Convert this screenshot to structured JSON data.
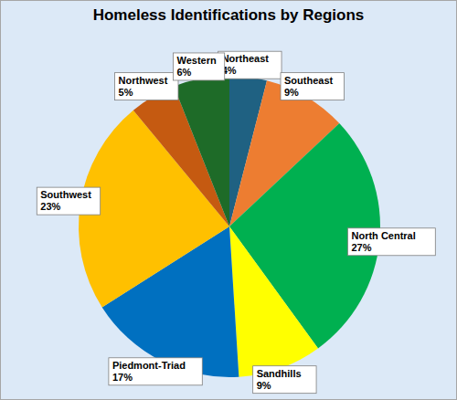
{
  "chart_data": {
    "type": "pie",
    "title": "Homeless Identifications by Regions",
    "categories": [
      "Northeast",
      "Southeast",
      "North Central",
      "Sandhills",
      "Piedmont-Triad",
      "Southwest",
      "Northwest",
      "Western"
    ],
    "values": [
      4,
      9,
      27,
      9,
      17,
      23,
      5,
      6
    ],
    "value_labels": [
      "4%",
      "9%",
      "27%",
      "9%",
      "17%",
      "23%",
      "5%",
      "6%"
    ],
    "colors": [
      "#1f6182",
      "#ed7d31",
      "#00b050",
      "#ffff00",
      "#0070c0",
      "#ffc000",
      "#c55a11",
      "#1e6b28"
    ],
    "data_labels": true
  }
}
